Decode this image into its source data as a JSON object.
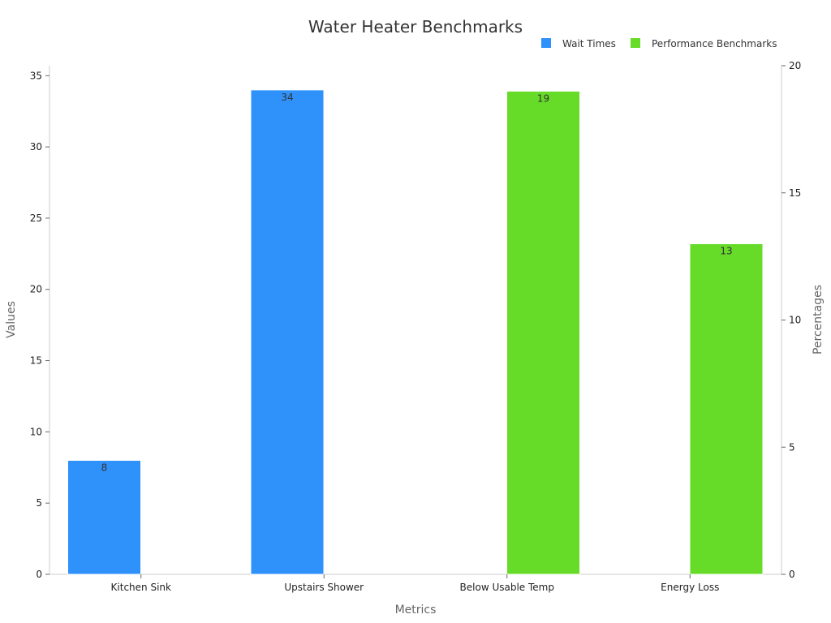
{
  "chart_data": {
    "type": "bar",
    "title": "Water Heater Benchmarks",
    "xlabel": "Metrics",
    "ylabel": "Values",
    "y2label": "Percentages",
    "categories": [
      "Kitchen Sink",
      "Upstairs Shower",
      "Below Usable Temp",
      "Energy Loss"
    ],
    "series": [
      {
        "name": "Wait Times",
        "axis": "left",
        "color": "#2f91fa",
        "values": [
          8,
          34,
          null,
          null
        ]
      },
      {
        "name": "Performance Benchmarks",
        "axis": "right",
        "color": "#66db28",
        "values": [
          null,
          null,
          19,
          13
        ]
      }
    ],
    "ylim": [
      0,
      35.7
    ],
    "y2lim": [
      0,
      20
    ],
    "yticks": [
      0,
      5,
      10,
      15,
      20,
      25,
      30,
      35
    ],
    "y2ticks": [
      0,
      5,
      10,
      15,
      20
    ],
    "legend_position": "top-right",
    "grid": false
  }
}
